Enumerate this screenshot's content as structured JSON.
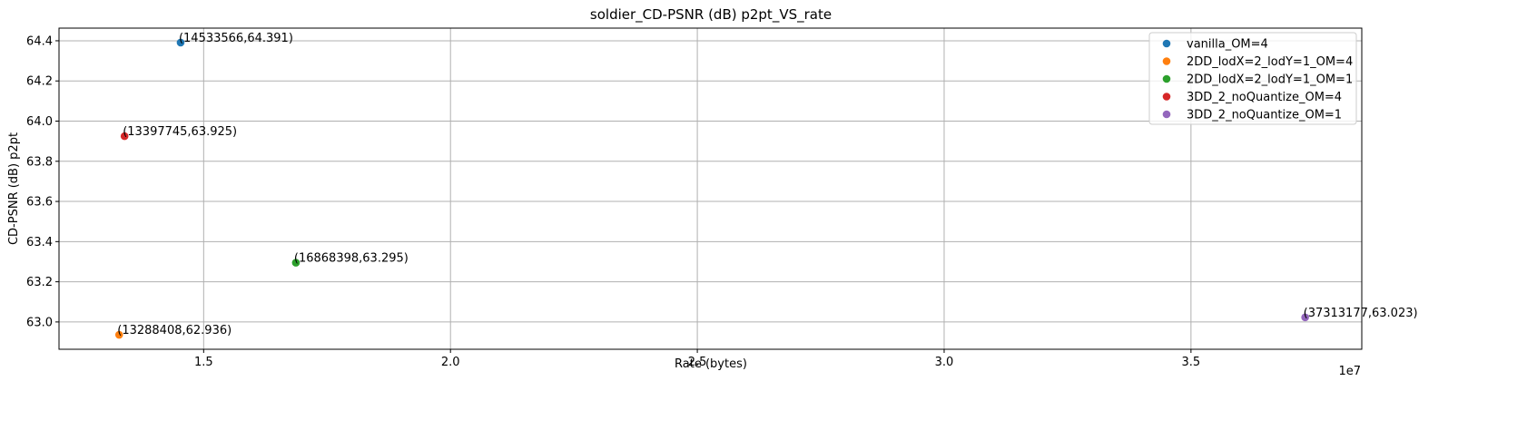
{
  "chart_data": {
    "type": "scatter",
    "title": "soldier_CD-PSNR (dB) p2pt_VS_rate",
    "xlabel": "Rate (bytes)",
    "ylabel": "CD-PSNR (dB) p2pt",
    "x_offset_label": "1e7",
    "xlim": [
      12070000,
      38460000
    ],
    "ylim": [
      62.864,
      64.463
    ],
    "x_scale": 10000000,
    "x_ticks": [
      1.5,
      2.0,
      2.5,
      3.0,
      3.5
    ],
    "y_ticks": [
      63.0,
      63.2,
      63.4,
      63.6,
      63.8,
      64.0,
      64.2,
      64.4
    ],
    "grid": true,
    "legend_position": "top-right",
    "series": [
      {
        "name": "vanilla_OM=4",
        "color": "#1f77b4",
        "x": 14533566,
        "y": 64.391,
        "label": "(14533566,64.391)"
      },
      {
        "name": "2DD_lodX=2_lodY=1_OM=4",
        "color": "#ff7f0e",
        "x": 13288408,
        "y": 62.936,
        "label": "(13288408,62.936)"
      },
      {
        "name": "2DD_lodX=2_lodY=1_OM=1",
        "color": "#2ca02c",
        "x": 16868398,
        "y": 63.295,
        "label": "(16868398,63.295)"
      },
      {
        "name": "3DD_2_noQuantize_OM=4",
        "color": "#d62728",
        "x": 13397745,
        "y": 63.925,
        "label": "(13397745,63.925)"
      },
      {
        "name": "3DD_2_noQuantize_OM=1",
        "color": "#9467bd",
        "x": 37313177,
        "y": 63.023,
        "label": "(37313177,63.023)"
      }
    ]
  }
}
